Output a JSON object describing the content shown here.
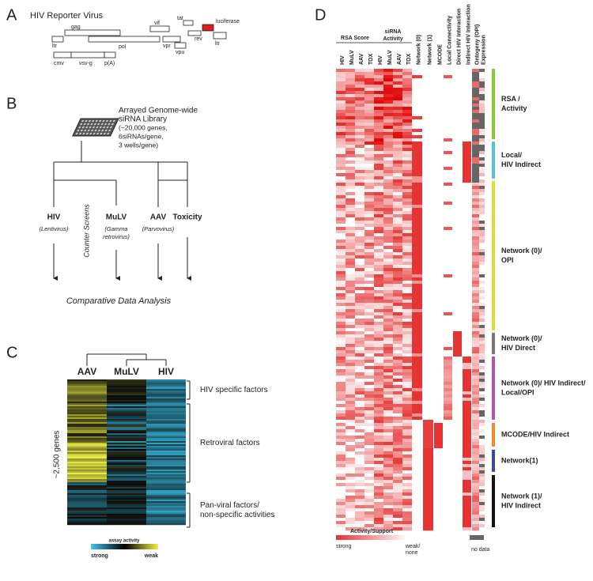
{
  "panel_a": {
    "letter": "A",
    "title": "HIV Reporter Virus",
    "genes": [
      "gag",
      "vif",
      "tat",
      "luciferase",
      "ltr",
      "pol",
      "vpr",
      "rev",
      "vpu",
      "ltr",
      "cmv",
      "vsv-g",
      "p(A)"
    ]
  },
  "panel_b": {
    "letter": "B",
    "library": [
      "Arrayed Genome-wide",
      "siRNA Library",
      "(~20,000 genes,",
      "6siRNAs/gene,",
      "3 wells/gene)"
    ],
    "screens": [
      {
        "name": "HIV",
        "sub": [
          "(Lentivirus)"
        ]
      },
      {
        "name": "MuLV",
        "sub": [
          "(Gamma",
          "retrovirus)"
        ]
      },
      {
        "name": "AAV",
        "sub": [
          "(Parvovirus)"
        ]
      },
      {
        "name": "Toxicity",
        "sub": []
      }
    ],
    "counter": "Counter Screens",
    "analysis": "Comparative Data Analysis"
  },
  "panel_c": {
    "letter": "C",
    "columns": [
      "AAV",
      "MuLV",
      "HIV"
    ],
    "groups": [
      [
        "HIV specific factors"
      ],
      [
        "Retroviral factors"
      ],
      [
        "Pan-viral factors/",
        "non-specific activities"
      ]
    ],
    "genes": "~2,500 genes",
    "scale_title": "assay activity",
    "strong": "strong",
    "weak": "weak"
  },
  "panel_d": {
    "letter": "D",
    "rsa": "RSA Score",
    "sirna": [
      "siRNA",
      "Activity"
    ],
    "columns": [
      "HIV",
      "MuLV",
      "AAV",
      "TOX",
      "HIV",
      "MuLV",
      "AAV",
      "TOX",
      "Network (0)",
      "Network (1)",
      "MCODE",
      "Local Connectivity",
      "Direct HIV Interaction",
      "Indirect HIV Interaction",
      "Ontogeny (OPI)",
      "Expression"
    ],
    "clusters": [
      {
        "label": [
          "RSA /",
          "Activity"
        ],
        "color": "#8dc63f"
      },
      {
        "label": [
          "Local/",
          "HIV Indirect"
        ],
        "color": "#5bc0de"
      },
      {
        "label": [
          "Network (0)/",
          "OPI"
        ],
        "color": "#dede3a"
      },
      {
        "label": [
          "Network (0)/",
          "HIV Direct"
        ],
        "color": "#777777"
      },
      {
        "label": [
          "Network (0)/ HIV Indirect/",
          "Local/OPI"
        ],
        "color": "#b4559f"
      },
      {
        "label": [
          "MCODE/HIV Indirect"
        ],
        "color": "#f08a2c"
      },
      {
        "label": [
          "Network(1)"
        ],
        "color": "#3b4a9c"
      },
      {
        "label": [
          "Network (1)/",
          "HIV Indirect"
        ],
        "color": "#111111"
      }
    ],
    "scale_title": "Activity/Support",
    "strong": "strong",
    "weak": [
      "weak/",
      "none"
    ],
    "no_data": "no data"
  }
}
